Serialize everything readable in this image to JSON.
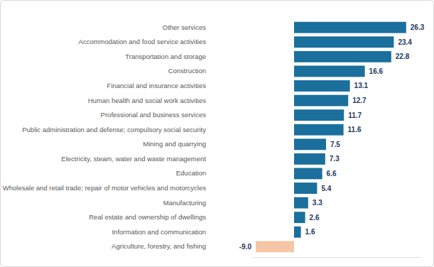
{
  "chart_data": {
    "type": "bar",
    "orientation": "horizontal",
    "categories": [
      "Other services",
      "Accommodation and food service activities",
      "Transportation and storage",
      "Construction",
      "Financial and insurance activities",
      "Human health and social work activities",
      "Professional and business services",
      "Public administration and defense; compulsory social security",
      "Mining and quarrying",
      "Electricity, steam, water and waste management",
      "Education",
      "Wholesale and retail trade; repair of motor vehicles and motorcycles",
      "Manufacturing",
      "Real estate and ownership of dwellings",
      "Information and communication",
      "Agriculture, forestry, and fishing"
    ],
    "values": [
      26.3,
      23.4,
      22.8,
      16.6,
      13.1,
      12.7,
      11.7,
      11.6,
      7.5,
      7.3,
      6.6,
      5.4,
      3.3,
      2.6,
      1.6,
      -9.0
    ],
    "value_labels": [
      "26.3",
      "23.4",
      "22.8",
      "16.6",
      "13.1",
      "12.7",
      "11.7",
      "11.6",
      "7.5",
      "7.3",
      "6.6",
      "5.4",
      "3.3",
      "2.6",
      "1.6",
      "-9.0"
    ],
    "colors": [
      "#1a6f9c",
      "#1a6f9c",
      "#1a6f9c",
      "#1a6f9c",
      "#1a6f9c",
      "#1a6f9c",
      "#1a6f9c",
      "#1a6f9c",
      "#1a6f9c",
      "#1a6f9c",
      "#1a6f9c",
      "#1a6f9c",
      "#1a6f9c",
      "#1a6f9c",
      "#1a6f9c",
      "#f5c6a5"
    ],
    "ylim": [
      -10,
      30
    ],
    "data_labels": true,
    "tick_labels": false,
    "grid": false
  }
}
